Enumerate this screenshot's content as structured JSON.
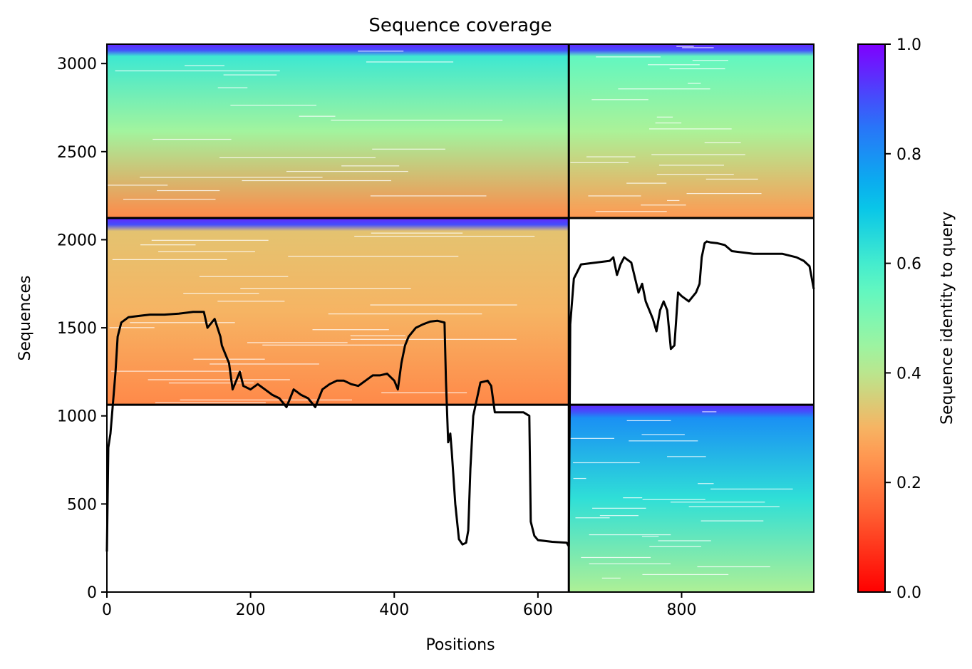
{
  "chart_data": {
    "type": "heatmap",
    "title": "Sequence coverage",
    "xlabel": "Positions",
    "ylabel": "Sequences",
    "xlim": [
      0,
      984
    ],
    "ylim": [
      0,
      3110
    ],
    "x_ticks": [
      0,
      200,
      400,
      600,
      800
    ],
    "y_ticks": [
      0,
      500,
      1000,
      1500,
      2000,
      2500,
      3000
    ],
    "grid": false,
    "legend": "none",
    "colorbar": {
      "label": "Sequence identity to query",
      "range": [
        0.0,
        1.0
      ],
      "ticks": [
        0.0,
        0.2,
        0.4,
        0.6,
        0.8,
        1.0
      ],
      "tick_labels": [
        "0.0",
        "0.2",
        "0.4",
        "0.6",
        "0.8",
        "1.0"
      ],
      "colormap": "rainbow_r",
      "stops": [
        "#ff0000",
        "#ff5e31",
        "#ffad5d",
        "#a9f49a",
        "#55f7c7",
        "#00c0ec",
        "#2b70f9",
        "#7f00ff"
      ]
    },
    "block_boundaries": {
      "x": [
        643
      ],
      "y": [
        1063,
        2123
      ]
    },
    "blocks": [
      {
        "x": [
          0,
          643
        ],
        "y": [
          2123,
          3110
        ],
        "identity_top": 0.95,
        "identity_mid": 0.56,
        "identity_bottom": 0.22
      },
      {
        "x": [
          643,
          984
        ],
        "y": [
          2123,
          3110
        ],
        "identity_top": 0.95,
        "identity_mid": 0.5,
        "identity_bottom": 0.25
      },
      {
        "x": [
          0,
          643
        ],
        "y": [
          1063,
          2123
        ],
        "identity_top": 0.95,
        "identity_mid": 0.28,
        "identity_bottom": 0.22
      },
      {
        "x": [
          643,
          984
        ],
        "y": [
          0,
          1063
        ],
        "identity_top": 0.95,
        "identity_mid": 0.75,
        "identity_bottom": 0.42
      }
    ],
    "coverage_line": {
      "x": [
        0,
        2,
        5,
        10,
        12,
        15,
        20,
        30,
        50,
        60,
        80,
        100,
        120,
        135,
        140,
        150,
        158,
        160,
        165,
        170,
        175,
        180,
        185,
        190,
        200,
        210,
        220,
        230,
        240,
        250,
        255,
        260,
        270,
        280,
        290,
        300,
        310,
        320,
        330,
        340,
        350,
        360,
        370,
        380,
        390,
        400,
        405,
        410,
        415,
        420,
        430,
        440,
        450,
        460,
        470,
        472,
        475,
        478,
        480,
        485,
        490,
        495,
        500,
        503,
        506,
        510,
        520,
        530,
        535,
        540,
        560,
        580,
        588,
        590,
        595,
        600,
        620,
        640,
        643,
        645,
        650,
        660,
        680,
        700,
        705,
        710,
        715,
        720,
        730,
        740,
        745,
        750,
        760,
        765,
        770,
        775,
        780,
        785,
        790,
        795,
        800,
        810,
        820,
        825,
        828,
        832,
        835,
        840,
        850,
        860,
        870,
        880,
        900,
        920,
        940,
        960,
        970,
        978,
        984
      ],
      "y": [
        230,
        820,
        900,
        1150,
        1250,
        1450,
        1530,
        1560,
        1570,
        1575,
        1575,
        1580,
        1590,
        1590,
        1500,
        1550,
        1450,
        1400,
        1350,
        1300,
        1150,
        1200,
        1250,
        1170,
        1150,
        1180,
        1150,
        1120,
        1100,
        1050,
        1100,
        1150,
        1120,
        1100,
        1050,
        1150,
        1180,
        1200,
        1200,
        1180,
        1170,
        1200,
        1230,
        1230,
        1240,
        1200,
        1150,
        1300,
        1400,
        1450,
        1500,
        1520,
        1535,
        1540,
        1530,
        1200,
        850,
        900,
        800,
        500,
        300,
        270,
        280,
        350,
        700,
        1000,
        1190,
        1200,
        1170,
        1020,
        1020,
        1020,
        1000,
        400,
        320,
        295,
        285,
        280,
        260,
        1520,
        1780,
        1860,
        1870,
        1880,
        1900,
        1800,
        1860,
        1900,
        1870,
        1700,
        1750,
        1650,
        1550,
        1480,
        1600,
        1650,
        1600,
        1380,
        1400,
        1700,
        1680,
        1650,
        1700,
        1750,
        1900,
        1980,
        1990,
        1985,
        1980,
        1970,
        1935,
        1930,
        1920,
        1920,
        1920,
        1900,
        1880,
        1850,
        1720
      ]
    }
  }
}
